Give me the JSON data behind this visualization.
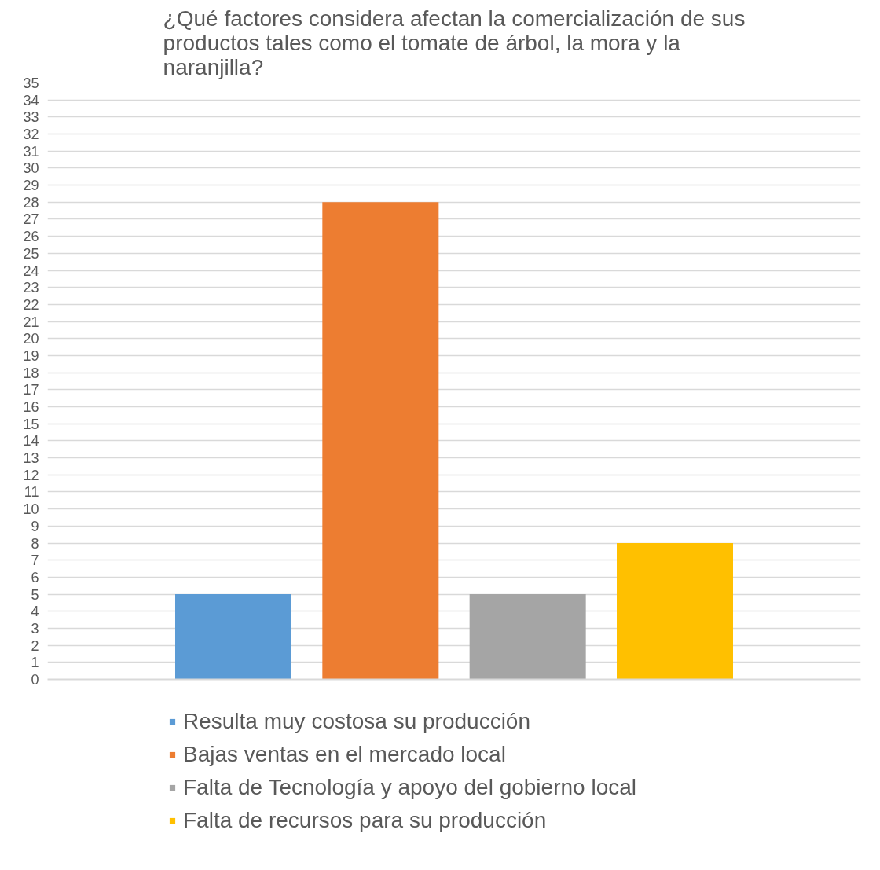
{
  "chart_data": {
    "type": "bar",
    "title": "¿Qué factores considera afectan la comercialización de sus productos tales como el tomate de árbol, la mora y la naranjilla?",
    "categories": [
      null
    ],
    "series": [
      {
        "name": "Resulta muy costosa su producción",
        "color": "#5b9bd5",
        "values": [
          5
        ]
      },
      {
        "name": "Bajas ventas en el mercado local",
        "color": "#ed7d31",
        "values": [
          28
        ]
      },
      {
        "name": "Falta de Tecnología y apoyo del gobierno local",
        "color": "#a5a5a5",
        "values": [
          5
        ]
      },
      {
        "name": "Falta de recursos para su producción",
        "color": "#ffc000",
        "values": [
          8
        ]
      }
    ],
    "ylim": [
      0,
      35
    ],
    "yticks": [
      0,
      1,
      2,
      3,
      4,
      5,
      6,
      7,
      8,
      9,
      10,
      11,
      12,
      13,
      14,
      15,
      16,
      17,
      18,
      19,
      20,
      21,
      22,
      23,
      24,
      25,
      26,
      27,
      28,
      29,
      30,
      31,
      32,
      33,
      34,
      35
    ],
    "grid": "y",
    "legend": "bottom"
  }
}
